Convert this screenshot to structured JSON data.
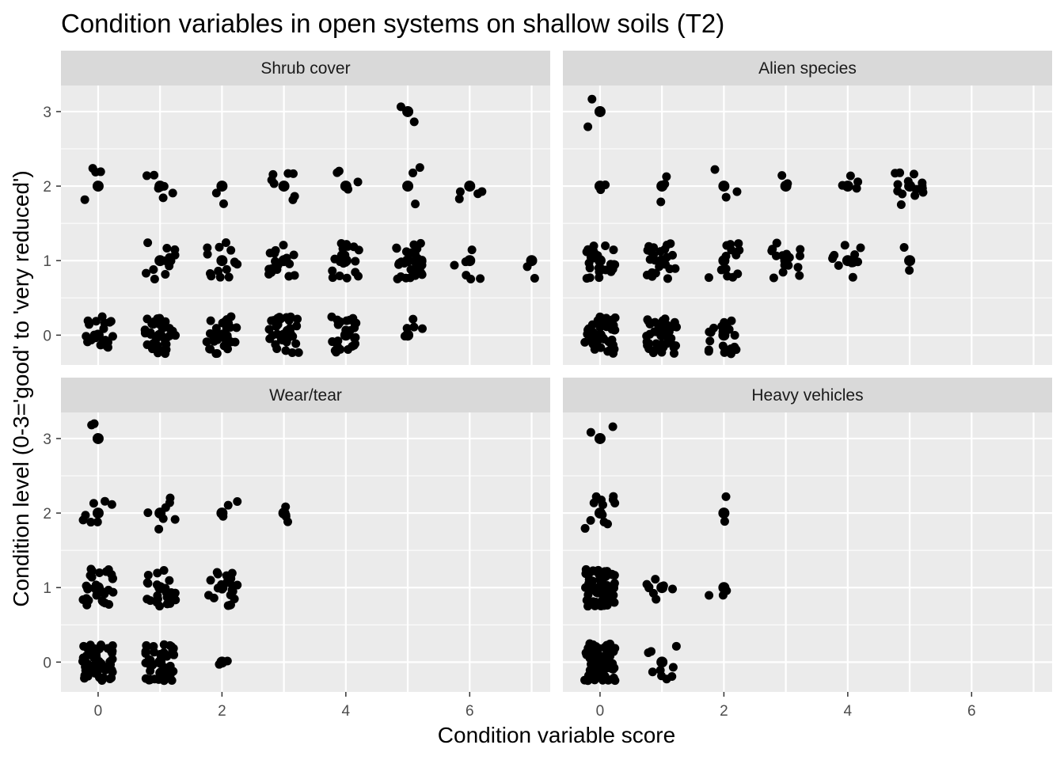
{
  "chart_data": {
    "type": "scatter",
    "title": "Condition variables in open systems on shallow soils (T2)",
    "xlabel": "Condition variable score",
    "ylabel": "Condition level (0-3='good' to 'very reduced')",
    "xlim": [
      -0.6,
      7.3
    ],
    "ylim": [
      -0.4,
      3.35
    ],
    "x_ticks": [
      0,
      2,
      4,
      6
    ],
    "y_ticks": [
      0,
      1,
      2,
      3
    ],
    "grid": true,
    "jitter": true,
    "point_color": "#000000",
    "panel_background": "#ebebeb",
    "strip_background": "#d9d9d9",
    "panels": [
      {
        "title": "Shrub cover",
        "points": [
          {
            "x": 0,
            "y": 0,
            "n": 22
          },
          {
            "x": 1,
            "y": 0,
            "n": 34
          },
          {
            "x": 2,
            "y": 0,
            "n": 30
          },
          {
            "x": 3,
            "y": 0,
            "n": 34
          },
          {
            "x": 4,
            "y": 0,
            "n": 28
          },
          {
            "x": 5,
            "y": 0,
            "n": 6
          },
          {
            "x": 1,
            "y": 1,
            "n": 12
          },
          {
            "x": 2,
            "y": 1,
            "n": 14
          },
          {
            "x": 3,
            "y": 1,
            "n": 16
          },
          {
            "x": 4,
            "y": 1,
            "n": 20
          },
          {
            "x": 5,
            "y": 1,
            "n": 28
          },
          {
            "x": 6,
            "y": 1,
            "n": 6
          },
          {
            "x": 7,
            "y": 1,
            "n": 2
          },
          {
            "x": 0,
            "y": 2,
            "n": 4
          },
          {
            "x": 1,
            "y": 2,
            "n": 6
          },
          {
            "x": 2,
            "y": 2,
            "n": 2
          },
          {
            "x": 3,
            "y": 2,
            "n": 7
          },
          {
            "x": 4,
            "y": 2,
            "n": 4
          },
          {
            "x": 5,
            "y": 2,
            "n": 3
          },
          {
            "x": 6,
            "y": 2,
            "n": 4
          },
          {
            "x": 5,
            "y": 3,
            "n": 2
          }
        ]
      },
      {
        "title": "Alien species",
        "points": [
          {
            "x": 0,
            "y": 0,
            "n": 50
          },
          {
            "x": 1,
            "y": 0,
            "n": 40
          },
          {
            "x": 2,
            "y": 0,
            "n": 22
          },
          {
            "x": 0,
            "y": 1,
            "n": 26
          },
          {
            "x": 1,
            "y": 1,
            "n": 24
          },
          {
            "x": 2,
            "y": 1,
            "n": 14
          },
          {
            "x": 3,
            "y": 1,
            "n": 18
          },
          {
            "x": 4,
            "y": 1,
            "n": 12
          },
          {
            "x": 5,
            "y": 1,
            "n": 2
          },
          {
            "x": 0,
            "y": 2,
            "n": 2
          },
          {
            "x": 1,
            "y": 2,
            "n": 3
          },
          {
            "x": 2,
            "y": 2,
            "n": 3
          },
          {
            "x": 3,
            "y": 2,
            "n": 2
          },
          {
            "x": 4,
            "y": 2,
            "n": 4
          },
          {
            "x": 5,
            "y": 2,
            "n": 14
          },
          {
            "x": 0,
            "y": 3,
            "n": 2
          }
        ]
      },
      {
        "title": "Wear/tear",
        "points": [
          {
            "x": 0,
            "y": 0,
            "n": 60
          },
          {
            "x": 1,
            "y": 0,
            "n": 50
          },
          {
            "x": 2,
            "y": 0,
            "n": 2
          },
          {
            "x": 0,
            "y": 1,
            "n": 30
          },
          {
            "x": 1,
            "y": 1,
            "n": 22
          },
          {
            "x": 2,
            "y": 1,
            "n": 24
          },
          {
            "x": 0,
            "y": 2,
            "n": 7
          },
          {
            "x": 1,
            "y": 2,
            "n": 7
          },
          {
            "x": 2,
            "y": 2,
            "n": 3
          },
          {
            "x": 3,
            "y": 2,
            "n": 4
          },
          {
            "x": 0,
            "y": 3,
            "n": 2
          }
        ]
      },
      {
        "title": "Heavy vehicles",
        "points": [
          {
            "x": 0,
            "y": 0,
            "n": 80
          },
          {
            "x": 1,
            "y": 0,
            "n": 9
          },
          {
            "x": 0,
            "y": 1,
            "n": 60
          },
          {
            "x": 1,
            "y": 1,
            "n": 8
          },
          {
            "x": 2,
            "y": 1,
            "n": 3
          },
          {
            "x": 0,
            "y": 2,
            "n": 12
          },
          {
            "x": 2,
            "y": 2,
            "n": 2
          },
          {
            "x": 0,
            "y": 3,
            "n": 2
          }
        ]
      }
    ]
  }
}
